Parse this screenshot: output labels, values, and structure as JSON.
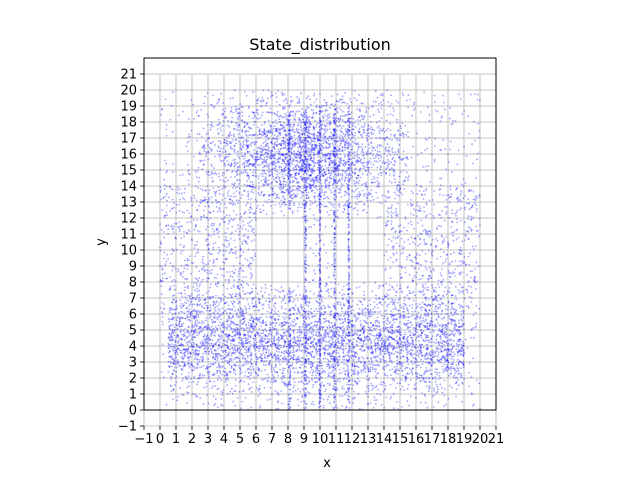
{
  "chart_data": {
    "type": "scatter",
    "title": "State_distribution",
    "xlabel": "x",
    "ylabel": "y",
    "xlim": [
      -1,
      21
    ],
    "ylim": [
      -1,
      21
    ],
    "xticks": [
      -1,
      0,
      1,
      2,
      3,
      4,
      5,
      6,
      7,
      8,
      9,
      10,
      11,
      12,
      13,
      14,
      15,
      16,
      17,
      18,
      19,
      20,
      21
    ],
    "yticks": [
      -1,
      0,
      1,
      2,
      3,
      4,
      5,
      6,
      7,
      8,
      9,
      10,
      11,
      12,
      13,
      14,
      15,
      16,
      17,
      18,
      19,
      20,
      21
    ],
    "grid": true,
    "point_color": "#0000ff",
    "point_alpha": 0.35,
    "aspect": "equal",
    "regions": [
      {
        "name": "",
        "x_range": [
          0,
          20
        ],
        "y_range": [
          0,
          8
        ],
        "density": "high"
      },
      {
        "name": "",
        "x_range": [
          2,
          16
        ],
        "y_range": [
          12,
          20
        ],
        "density": "high"
      },
      {
        "name": "",
        "x_range": [
          0,
          20
        ],
        "y_range": [
          0,
          20
        ],
        "density": "low"
      }
    ],
    "vertical_stripes_x": [
      8.1,
      9.1,
      10.0,
      10.9,
      11.8
    ],
    "empty_regions": [
      {
        "x_range": [
          6,
          9
        ],
        "y_range": [
          8,
          12
        ]
      },
      {
        "x_range": [
          11,
          14
        ],
        "y_range": [
          8,
          12
        ]
      }
    ]
  }
}
